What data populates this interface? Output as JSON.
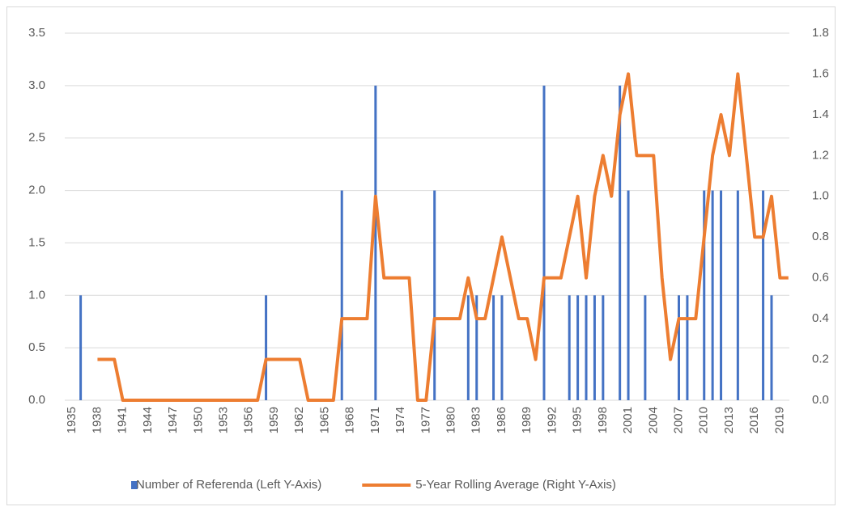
{
  "chart_data": {
    "type": "bar",
    "categories": [
      "1935",
      null,
      null,
      "1938",
      null,
      null,
      "1941",
      null,
      null,
      "1944",
      null,
      null,
      "1947",
      null,
      null,
      "1950",
      null,
      null,
      "1953",
      null,
      null,
      "1956",
      null,
      null,
      "1959",
      null,
      null,
      "1962",
      null,
      null,
      "1965",
      null,
      null,
      "1968",
      null,
      null,
      "1971",
      null,
      null,
      "1974",
      null,
      null,
      "1977",
      null,
      null,
      "1980",
      null,
      null,
      "1983",
      null,
      null,
      "1986",
      null,
      null,
      "1989",
      null,
      null,
      "1992",
      null,
      null,
      "1995",
      null,
      null,
      "1998",
      null,
      null,
      "2001",
      null,
      null,
      "2004",
      null,
      null,
      "2007",
      null,
      null,
      "2010",
      null,
      null,
      "2013",
      null,
      null,
      "2016",
      null,
      null,
      "2019",
      null
    ],
    "series": [
      {
        "name": "Number of Referenda (Left Y-Axis)",
        "color": "#4472c4",
        "values": [
          0,
          1,
          0,
          0,
          0,
          0,
          0,
          0,
          0,
          0,
          0,
          0,
          0,
          0,
          0,
          0,
          0,
          0,
          0,
          0,
          0,
          0,
          0,
          1,
          0,
          0,
          0,
          0,
          0,
          0,
          0,
          0,
          2,
          0,
          0,
          0,
          3,
          0,
          0,
          0,
          0,
          0,
          0,
          2,
          0,
          0,
          0,
          1,
          1,
          0,
          1,
          1,
          0,
          0,
          0,
          0,
          3,
          0,
          0,
          1,
          1,
          1,
          1,
          1,
          0,
          3,
          2,
          0,
          1,
          0,
          0,
          0,
          1,
          1,
          0,
          2,
          2,
          2,
          0,
          2,
          0,
          0,
          2,
          1,
          0,
          0
        ]
      },
      {
        "name": "5-Year Rolling Average (Right Y-Axis)",
        "color": "#ed7d31",
        "type": "line",
        "axis": "y2",
        "values": [
          null,
          null,
          null,
          0.2,
          0.2,
          0.2,
          0,
          0,
          0,
          0,
          0,
          0,
          0,
          0,
          0,
          0,
          0,
          0,
          0,
          0,
          0,
          0,
          0,
          0.2,
          0.2,
          0.2,
          0.2,
          0.2,
          0,
          0,
          0,
          0,
          0.4,
          0.4,
          0.4,
          0.4,
          1.0,
          0.6,
          0.6,
          0.6,
          0.6,
          0,
          0,
          0.4,
          0.4,
          0.4,
          0.4,
          0.6,
          0.4,
          0.4,
          0.6,
          0.8,
          0.6,
          0.4,
          0.4,
          0.2,
          0.6,
          0.6,
          0.6,
          0.8,
          1.0,
          0.6,
          1.0,
          1.2,
          1.0,
          1.4,
          1.6,
          1.2,
          1.2,
          1.2,
          0.6,
          0.2,
          0.4,
          0.4,
          0.4,
          0.8,
          1.2,
          1.4,
          1.2,
          1.6,
          1.2,
          0.8,
          0.8,
          1.0,
          0.6,
          0.6
        ]
      }
    ],
    "ylim": [
      0,
      3.5
    ],
    "yticks": [
      {
        "value": 0,
        "label": "0.0"
      },
      {
        "value": 0.5,
        "label": "0.5"
      },
      {
        "value": 1,
        "label": "1.0"
      },
      {
        "value": 1.5,
        "label": "1.5"
      },
      {
        "value": 2,
        "label": "2.0"
      },
      {
        "value": 2.5,
        "label": "2.5"
      },
      {
        "value": 3,
        "label": "3.0"
      },
      {
        "value": 3.5,
        "label": "3.5"
      }
    ],
    "y2lim": [
      0,
      1.8
    ],
    "y2ticks": [
      {
        "value": 0,
        "label": "0.0"
      },
      {
        "value": 0.2,
        "label": "0.2"
      },
      {
        "value": 0.4,
        "label": "0.4"
      },
      {
        "value": 0.6,
        "label": "0.6"
      },
      {
        "value": 0.8,
        "label": "0.8"
      },
      {
        "value": 1,
        "label": "1.0"
      },
      {
        "value": 1.2,
        "label": "1.2"
      },
      {
        "value": 1.4,
        "label": "1.4"
      },
      {
        "value": 1.6,
        "label": "1.6"
      },
      {
        "value": 1.8,
        "label": "1.8"
      }
    ],
    "grid": true,
    "legend": "bottom"
  }
}
